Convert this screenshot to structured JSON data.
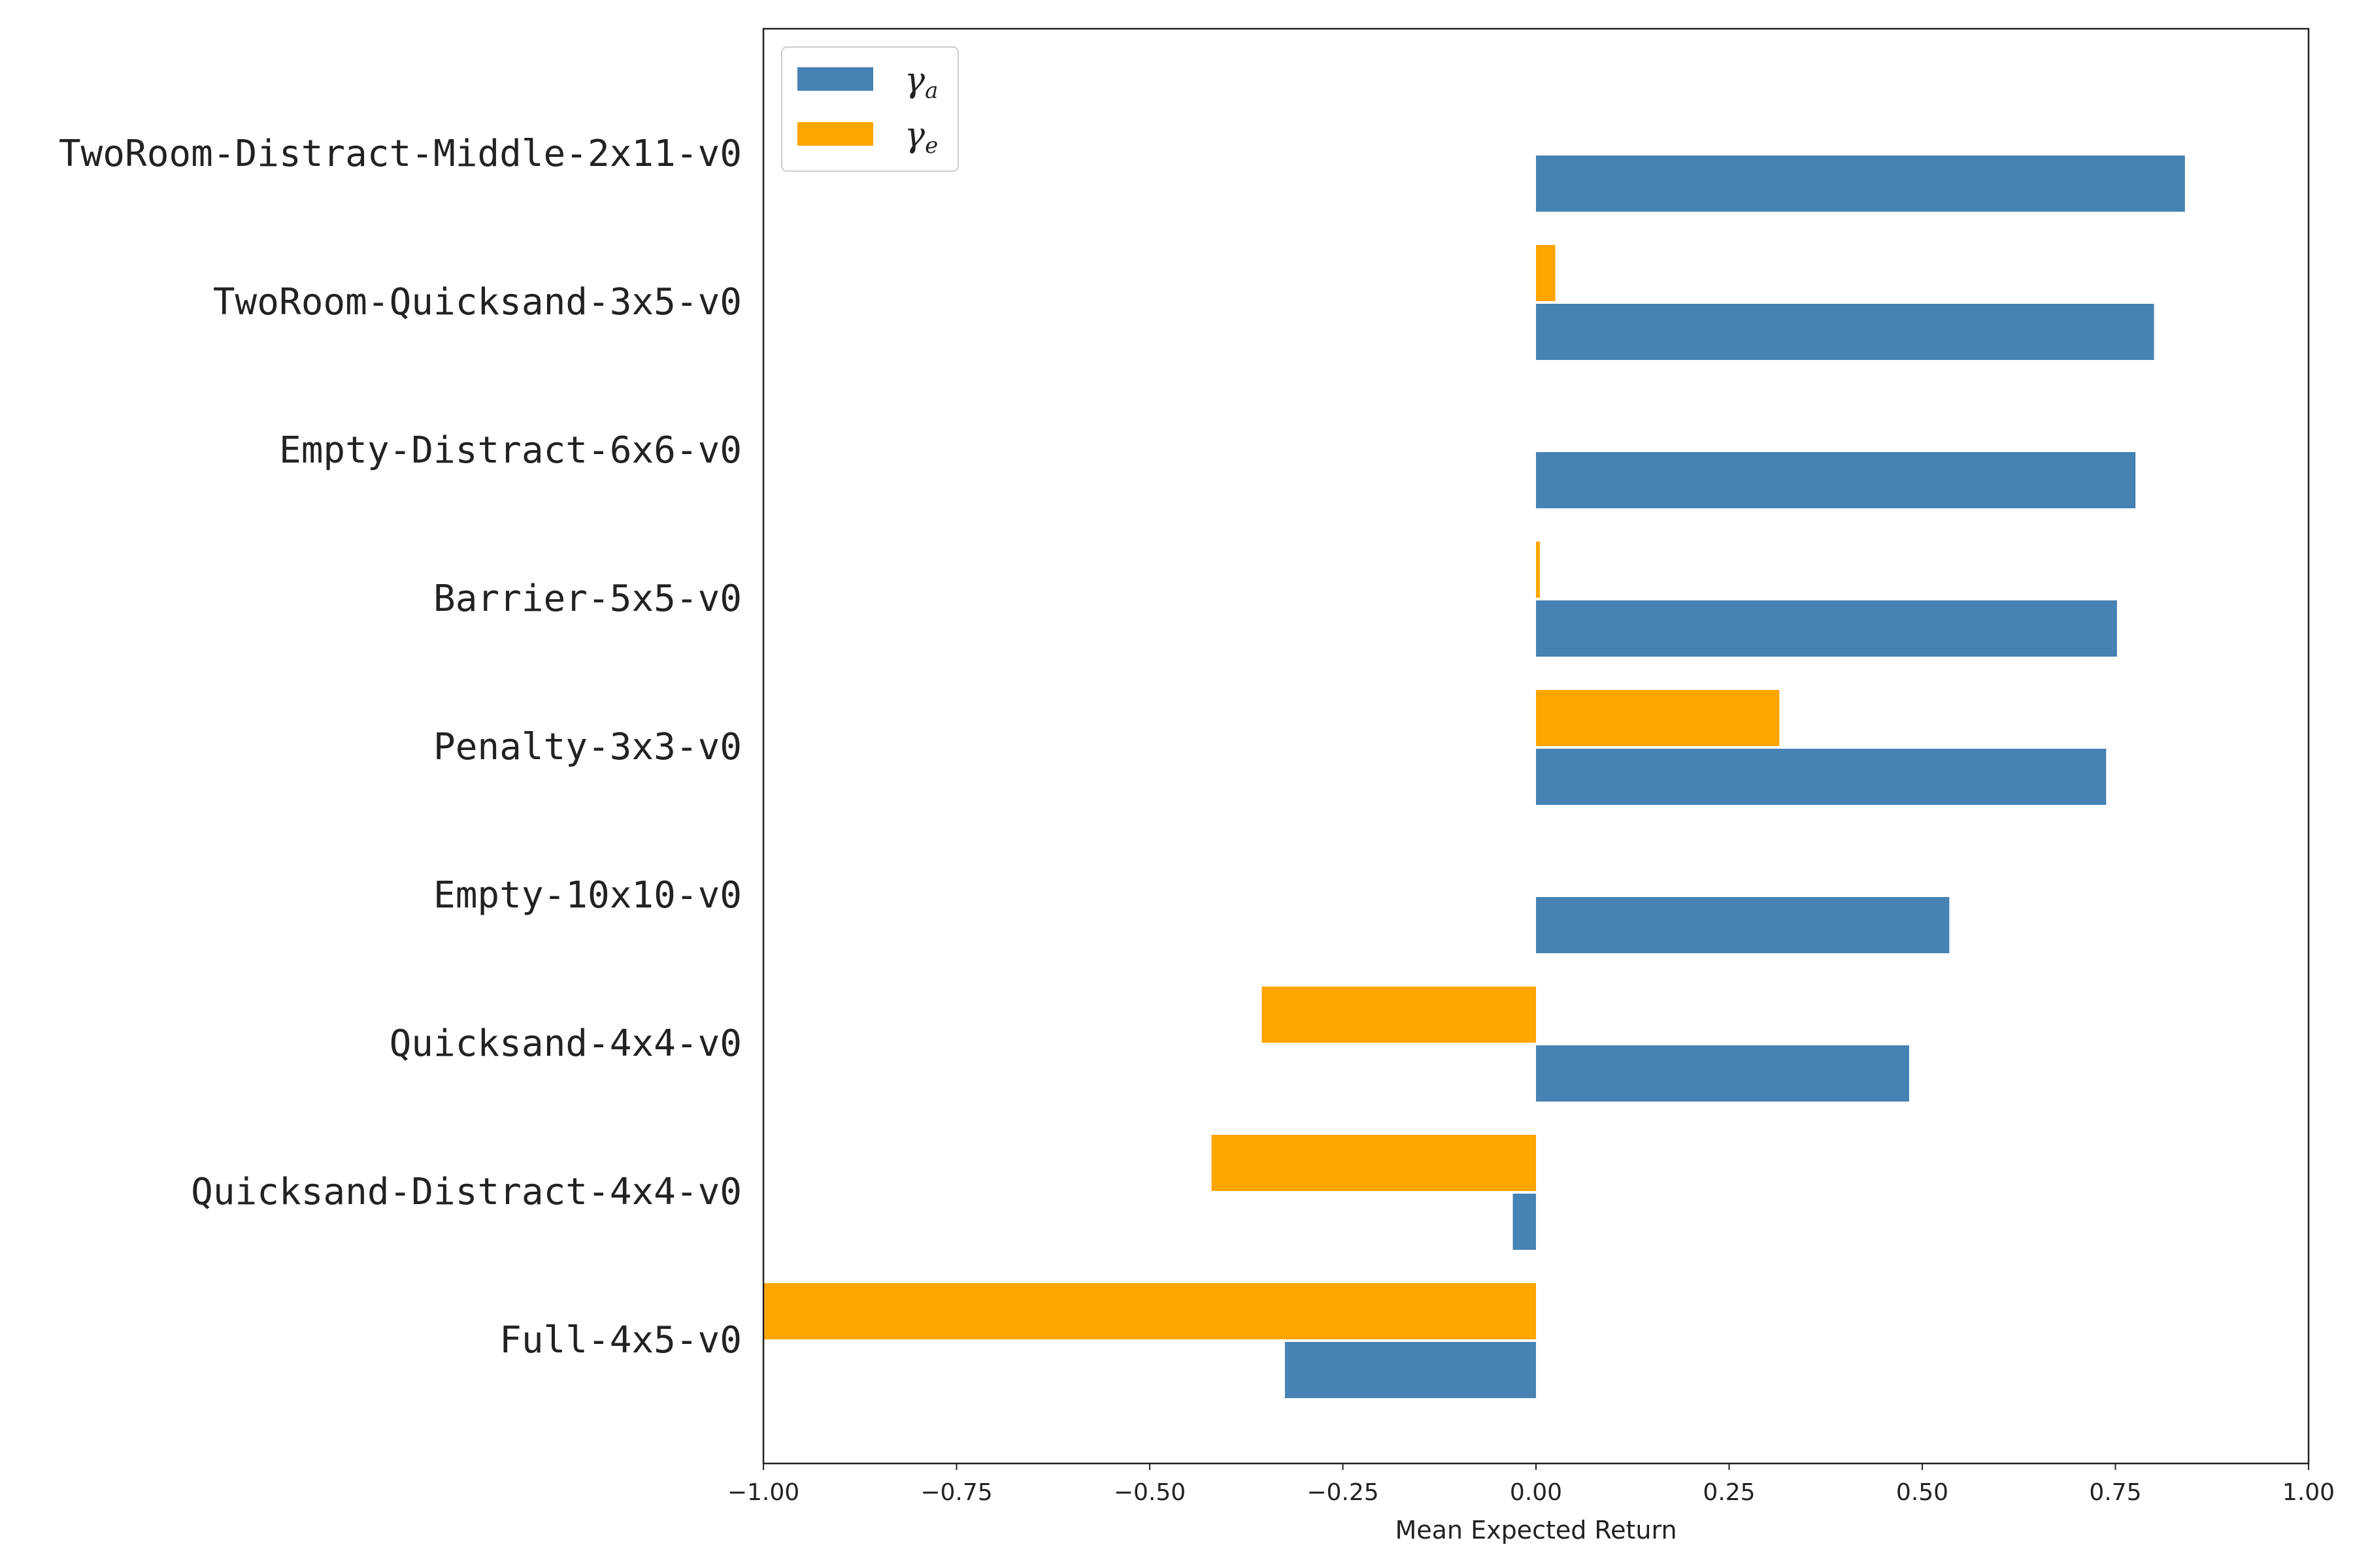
{
  "chart_data": {
    "type": "bar",
    "orientation": "horizontal",
    "title": "",
    "xlabel": "Mean Expected Return",
    "ylabel": "",
    "xlim": [
      -1.0,
      1.0
    ],
    "x_ticks": [
      -1.0,
      -0.75,
      -0.5,
      -0.25,
      0.0,
      0.25,
      0.5,
      0.75,
      1.0
    ],
    "x_tick_labels": [
      "−1.00",
      "−0.75",
      "−0.50",
      "−0.25",
      "0.00",
      "0.25",
      "0.50",
      "0.75",
      "1.00"
    ],
    "grid": false,
    "legend_position": "top-left",
    "categories": [
      "TwoRoom-Distract-Middle-2x11-v0",
      "TwoRoom-Quicksand-3x5-v0",
      "Empty-Distract-6x6-v0",
      "Barrier-5x5-v0",
      "Penalty-3x3-v0",
      "Empty-10x10-v0",
      "Quicksand-4x4-v0",
      "Quicksand-Distract-4x4-v0",
      "Full-4x5-v0"
    ],
    "series": [
      {
        "name": "γ",
        "name_subscript": "a",
        "color": "#4682b4",
        "values": [
          0.84,
          0.8,
          0.776,
          0.752,
          0.738,
          0.535,
          0.483,
          -0.03,
          -0.325
        ]
      },
      {
        "name": "γ",
        "name_subscript": "e",
        "color": "#ffa500",
        "values": [
          0.0,
          0.025,
          0.0,
          0.005,
          0.315,
          0.0,
          -0.355,
          -0.42,
          -1.0
        ]
      }
    ]
  }
}
